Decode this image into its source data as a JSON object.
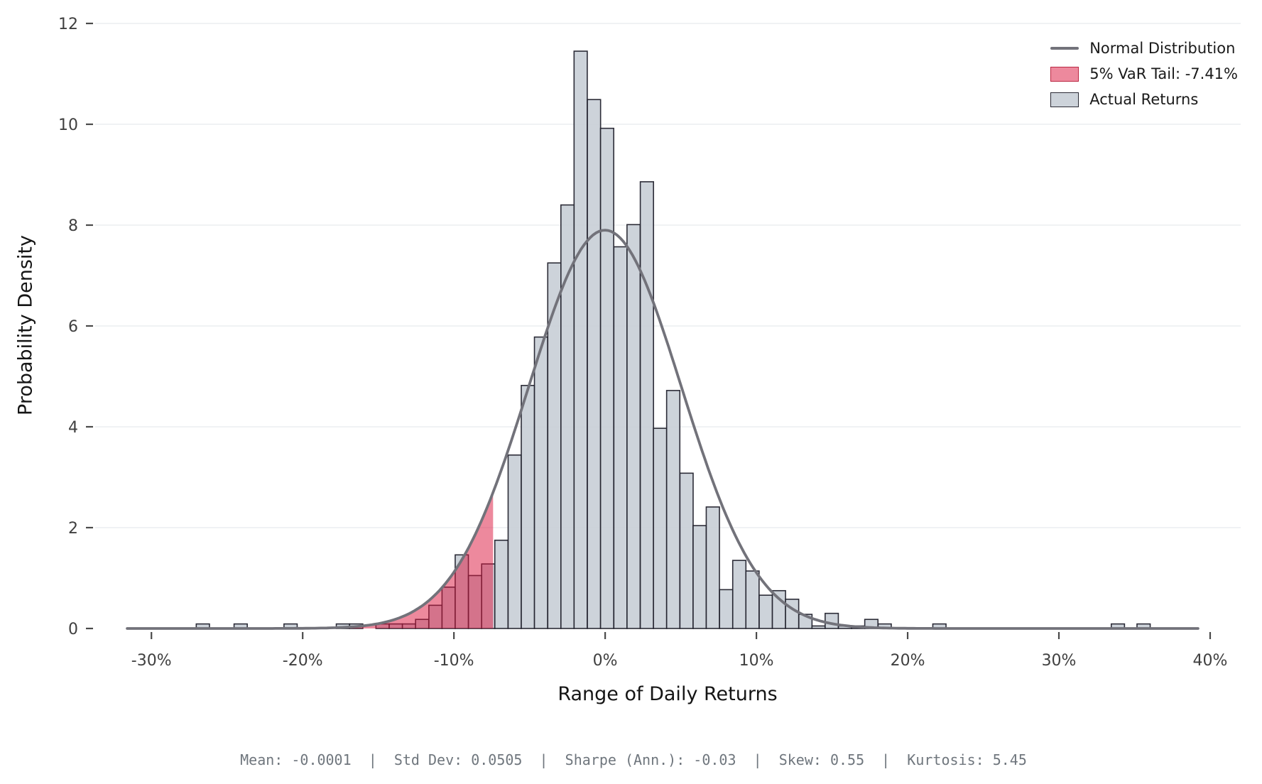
{
  "figure": {
    "y_label": "Probability Density",
    "x_label": "Range of Daily Returns",
    "stats_line": "Mean: -0.0001  |  Std Dev: 0.0505  |  Sharpe (Ann.): -0.03  |  Skew: 0.55  |  Kurtosis: 5.45"
  },
  "legend": {
    "items": [
      {
        "swatch": "line",
        "label": "Normal Distribution"
      },
      {
        "swatch": "patch-red",
        "label": "5% VaR Tail: -7.41%"
      },
      {
        "swatch": "patch-gray",
        "label": "Actual Returns"
      }
    ]
  },
  "colors": {
    "bar_fill": "#c6cdd5",
    "bar_edge": "#22222d",
    "curve": "#72727a",
    "var_fill": "#dc143c",
    "grid": "#e8e9ed",
    "tick_mark": "#4a4a4a",
    "tick_label": "#3f3f3f"
  },
  "chart_data": {
    "type": "bar",
    "subtype": "histogram-with-normal-overlay",
    "title": "",
    "xlabel": "Range of Daily Returns",
    "ylabel": "Probability Density",
    "x_axis": {
      "ticks": [
        -30,
        -20,
        -10,
        0,
        10,
        20,
        30,
        40
      ],
      "tick_labels": [
        "-30%",
        "-20%",
        "-10%",
        "0%",
        "10%",
        "20%",
        "30%",
        "40%"
      ],
      "unit": "percent_daily_return"
    },
    "y_axis": {
      "ticks": [
        0,
        2,
        4,
        6,
        8,
        10,
        12
      ],
      "range": [
        0,
        12
      ]
    },
    "bin_width_pct": 0.873,
    "bins": [
      [
        -26.6,
        0.09
      ],
      [
        -24.1,
        0.09
      ],
      [
        -20.8,
        0.09
      ],
      [
        -17.34,
        0.09
      ],
      [
        -16.46,
        0.09
      ],
      [
        -14.72,
        0.09
      ],
      [
        -13.84,
        0.09
      ],
      [
        -12.97,
        0.09
      ],
      [
        -12.1,
        0.18
      ],
      [
        -11.22,
        0.46
      ],
      [
        -10.35,
        0.82
      ],
      [
        -9.48,
        1.46
      ],
      [
        -8.6,
        1.05
      ],
      [
        -7.73,
        1.28
      ],
      [
        -6.86,
        1.75
      ],
      [
        -5.98,
        3.44
      ],
      [
        -5.11,
        4.82
      ],
      [
        -4.24,
        5.78
      ],
      [
        -3.36,
        7.25
      ],
      [
        -2.49,
        8.4
      ],
      [
        -1.62,
        11.45
      ],
      [
        -0.74,
        10.49
      ],
      [
        0.13,
        9.92
      ],
      [
        1.01,
        7.57
      ],
      [
        1.88,
        8.01
      ],
      [
        2.76,
        8.86
      ],
      [
        3.63,
        3.97
      ],
      [
        4.5,
        4.72
      ],
      [
        5.38,
        3.08
      ],
      [
        6.25,
        2.04
      ],
      [
        7.12,
        2.41
      ],
      [
        8.0,
        0.77
      ],
      [
        8.87,
        1.35
      ],
      [
        9.74,
        1.14
      ],
      [
        10.62,
        0.66
      ],
      [
        11.49,
        0.75
      ],
      [
        12.36,
        0.58
      ],
      [
        13.24,
        0.28
      ],
      [
        14.11,
        0.05
      ],
      [
        14.98,
        0.3
      ],
      [
        15.86,
        0.05
      ],
      [
        16.73,
        0.05
      ],
      [
        17.6,
        0.18
      ],
      [
        18.48,
        0.09
      ],
      [
        22.1,
        0.09
      ],
      [
        33.9,
        0.09
      ],
      [
        35.6,
        0.09
      ]
    ],
    "normal_curve": {
      "mean_pct": -0.01,
      "sd_pct": 5.05,
      "peak_density": 7.9,
      "x_start_pct": -31.6,
      "x_end_pct": 39.2
    },
    "var": {
      "threshold_pct": -7.41,
      "confidence": "5%",
      "label": "5% VaR Tail: -7.41%"
    },
    "stats": {
      "mean": -0.0001,
      "std_dev": 0.0505,
      "sharpe_ann": -0.03,
      "skew": 0.55,
      "kurtosis": 5.45
    },
    "legend_position": "upper-right",
    "grid": "horizontal-only"
  }
}
